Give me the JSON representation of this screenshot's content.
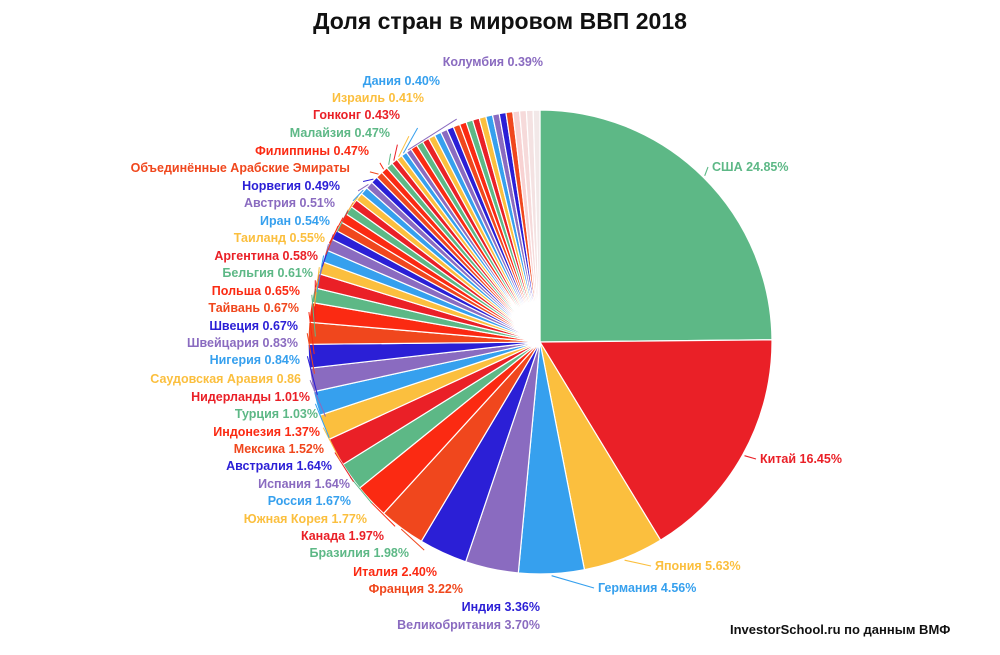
{
  "chart_data": {
    "type": "pie",
    "title": "Доля стран в мировом ВВП 2018",
    "source": "InvestorSchool.ru по данным ВМФ",
    "slices": [
      {
        "label": "США 24.85%",
        "value": 24.85,
        "color": "#5db886"
      },
      {
        "label": "Китай 16.45%",
        "value": 16.45,
        "color": "#ea2027"
      },
      {
        "label": "Япония 5.63%",
        "value": 5.63,
        "color": "#fbbf3e"
      },
      {
        "label": "Германия 4.56%",
        "value": 4.56,
        "color": "#36a0ee"
      },
      {
        "label": "Великобритания 3.70%",
        "value": 3.7,
        "color": "#8a6bc0"
      },
      {
        "label": "Индия 3.36%",
        "value": 3.36,
        "color": "#2b1fd6"
      },
      {
        "label": "Франция 3.22%",
        "value": 3.22,
        "color": "#f0471d"
      },
      {
        "label": "Италия 2.40%",
        "value": 2.4,
        "color": "#fb2a12"
      },
      {
        "label": "Бразилия 1.98%",
        "value": 1.98,
        "color": "#5db886"
      },
      {
        "label": "Канада 1.97%",
        "value": 1.97,
        "color": "#ea2027"
      },
      {
        "label": "Южная Корея 1.77%",
        "value": 1.77,
        "color": "#fbbf3e"
      },
      {
        "label": "Россия 1.67%",
        "value": 1.67,
        "color": "#36a0ee"
      },
      {
        "label": "Испания 1.64%",
        "value": 1.64,
        "color": "#8a6bc0"
      },
      {
        "label": "Австралия 1.64%",
        "value": 1.64,
        "color": "#2b1fd6"
      },
      {
        "label": "Мексика 1.52%",
        "value": 1.52,
        "color": "#f0471d"
      },
      {
        "label": "Индонезия 1.37%",
        "value": 1.37,
        "color": "#fb2a12"
      },
      {
        "label": "Турция 1.03%",
        "value": 1.03,
        "color": "#5db886"
      },
      {
        "label": "Нидерланды 1.01%",
        "value": 1.01,
        "color": "#ea2027"
      },
      {
        "label": "Саудовская Аравия 0.86",
        "value": 0.86,
        "color": "#fbbf3e"
      },
      {
        "label": "Нигерия 0.84%",
        "value": 0.84,
        "color": "#36a0ee"
      },
      {
        "label": "Швейцария 0.83%",
        "value": 0.83,
        "color": "#8a6bc0"
      },
      {
        "label": "Швеция 0.67%",
        "value": 0.67,
        "color": "#2b1fd6"
      },
      {
        "label": "Тайвань 0.67%",
        "value": 0.67,
        "color": "#f0471d"
      },
      {
        "label": "Польша 0.65%",
        "value": 0.65,
        "color": "#fb2a12"
      },
      {
        "label": "Бельгия 0.61%",
        "value": 0.61,
        "color": "#5db886"
      },
      {
        "label": "Аргентина 0.58%",
        "value": 0.58,
        "color": "#ea2027"
      },
      {
        "label": "Таиланд 0.55%",
        "value": 0.55,
        "color": "#fbbf3e"
      },
      {
        "label": "Иран 0.54%",
        "value": 0.54,
        "color": "#36a0ee"
      },
      {
        "label": "Австрия 0.51%",
        "value": 0.51,
        "color": "#8a6bc0"
      },
      {
        "label": "Норвегия 0.49%",
        "value": 0.49,
        "color": "#2b1fd6"
      },
      {
        "label": "Объединённые Арабские Эмираты",
        "value": 0.48,
        "color": "#f0471d"
      },
      {
        "label": "Филиппины 0.47%",
        "value": 0.47,
        "color": "#fb2a12"
      },
      {
        "label": "Малайзия 0.47%",
        "value": 0.47,
        "color": "#5db886"
      },
      {
        "label": "Гонконг 0.43%",
        "value": 0.43,
        "color": "#ea2027"
      },
      {
        "label": "Израиль 0.41%",
        "value": 0.41,
        "color": "#fbbf3e"
      },
      {
        "label": "Дания 0.40%",
        "value": 0.4,
        "color": "#36a0ee"
      },
      {
        "label": "Колумбия 0.39%",
        "value": 0.39,
        "color": "#8a6bc0"
      }
    ],
    "other_slices_colors": [
      "#fb2a12",
      "#5db886",
      "#ea2027",
      "#fbbf3e",
      "#36a0ee",
      "#8a6bc0",
      "#2b1fd6",
      "#f0471d",
      "#fb2a12",
      "#5db886",
      "#ea2027",
      "#fbbf3e",
      "#36a0ee",
      "#8a6bc0",
      "#2b1fd6",
      "#f0471d",
      "#f8d2d2",
      "#f6dada",
      "#f4e2e2",
      "#f2e8e8"
    ],
    "legend": "labels beside slices"
  }
}
